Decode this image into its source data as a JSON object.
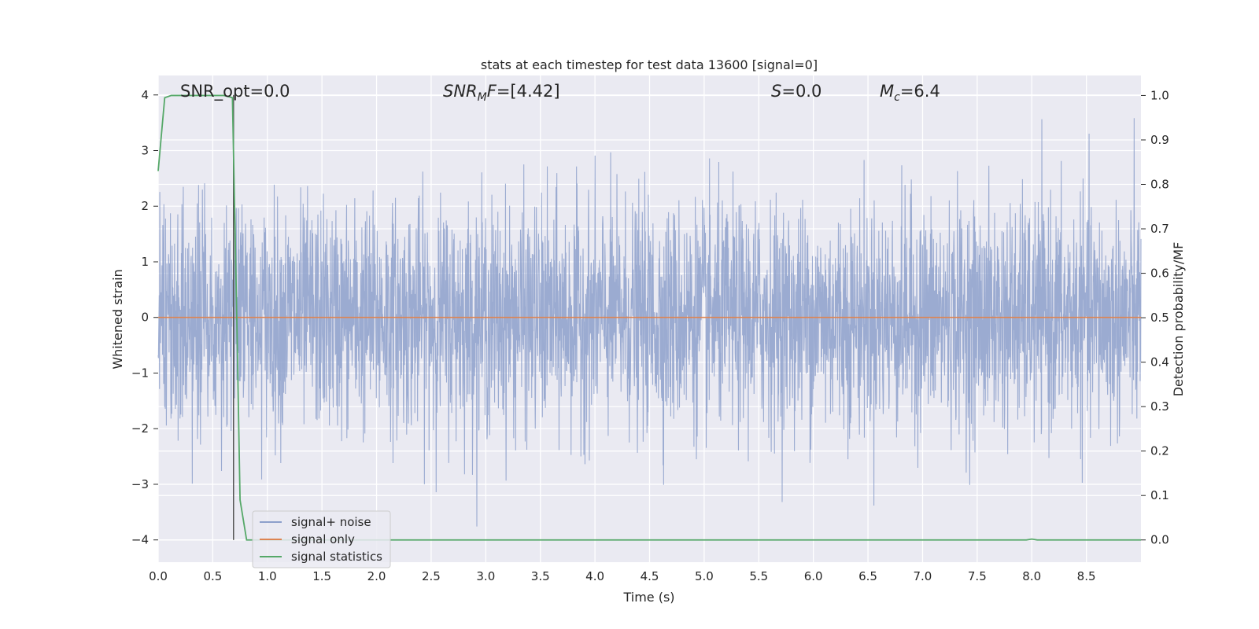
{
  "chart_data": {
    "type": "line",
    "title": "stats at each timestep for test data 13600 [signal=0]",
    "xlabel": "Time (s)",
    "ylabel": "Whitened strain",
    "y2label": "Detection probability/MF",
    "xlim": [
      0.0,
      9.0
    ],
    "ylim": [
      -4.4,
      4.35
    ],
    "y2lim": [
      -0.05,
      1.045
    ],
    "xticks": [
      "0.0",
      "0.5",
      "1.0",
      "1.5",
      "2.0",
      "2.5",
      "3.0",
      "3.5",
      "4.0",
      "4.5",
      "5.0",
      "5.5",
      "6.0",
      "6.5",
      "7.0",
      "7.5",
      "8.0",
      "8.5"
    ],
    "yticks": [
      "4",
      "3",
      "2",
      "1",
      "0",
      "−1",
      "−2",
      "−3",
      "−4"
    ],
    "y2ticks": [
      "1.0",
      "0.9",
      "0.8",
      "0.7",
      "0.6",
      "0.5",
      "0.4",
      "0.3",
      "0.2",
      "0.1",
      "0.0"
    ],
    "grid": true,
    "legend_position": "lower-left",
    "legend": [
      "signal+ noise",
      "signal only",
      "signal statistics"
    ],
    "annotations": [
      {
        "name": "snr-opt",
        "text": "SNR_opt=0.0"
      },
      {
        "name": "snr-mf",
        "text": "SNR_MF=[4.42]"
      },
      {
        "name": "s-value",
        "text": "S=0.0"
      },
      {
        "name": "chirp-mass",
        "text": "M_c=6.4"
      }
    ],
    "vertical_marker_x": 0.69,
    "series": [
      {
        "name": "signal+ noise",
        "axis": "left",
        "color": "#8da0cb",
        "noise_std": 1.0,
        "noise_envelope": [
          -3.8,
          3.95
        ],
        "x_range": [
          0.0,
          9.0
        ]
      },
      {
        "name": "signal only",
        "axis": "left",
        "color": "#dd8452",
        "x": [
          0.0,
          9.0
        ],
        "values": [
          0.0,
          0.0
        ]
      },
      {
        "name": "signal statistics",
        "axis": "right",
        "color": "#55a868",
        "x": [
          0.0,
          0.06,
          0.12,
          0.2,
          0.3,
          0.4,
          0.5,
          0.6,
          0.68,
          0.72,
          0.75,
          0.81,
          1.0,
          2.0,
          3.0,
          4.0,
          5.0,
          6.0,
          7.0,
          7.95,
          8.0,
          8.05,
          9.0
        ],
        "values": [
          0.83,
          0.995,
          1.0,
          1.0,
          1.0,
          1.0,
          1.0,
          1.0,
          0.995,
          0.5,
          0.09,
          0.0,
          0.0,
          0.0,
          0.0,
          0.0,
          0.0,
          0.0,
          0.0,
          0.0,
          0.002,
          0.0,
          0.0
        ]
      }
    ]
  }
}
